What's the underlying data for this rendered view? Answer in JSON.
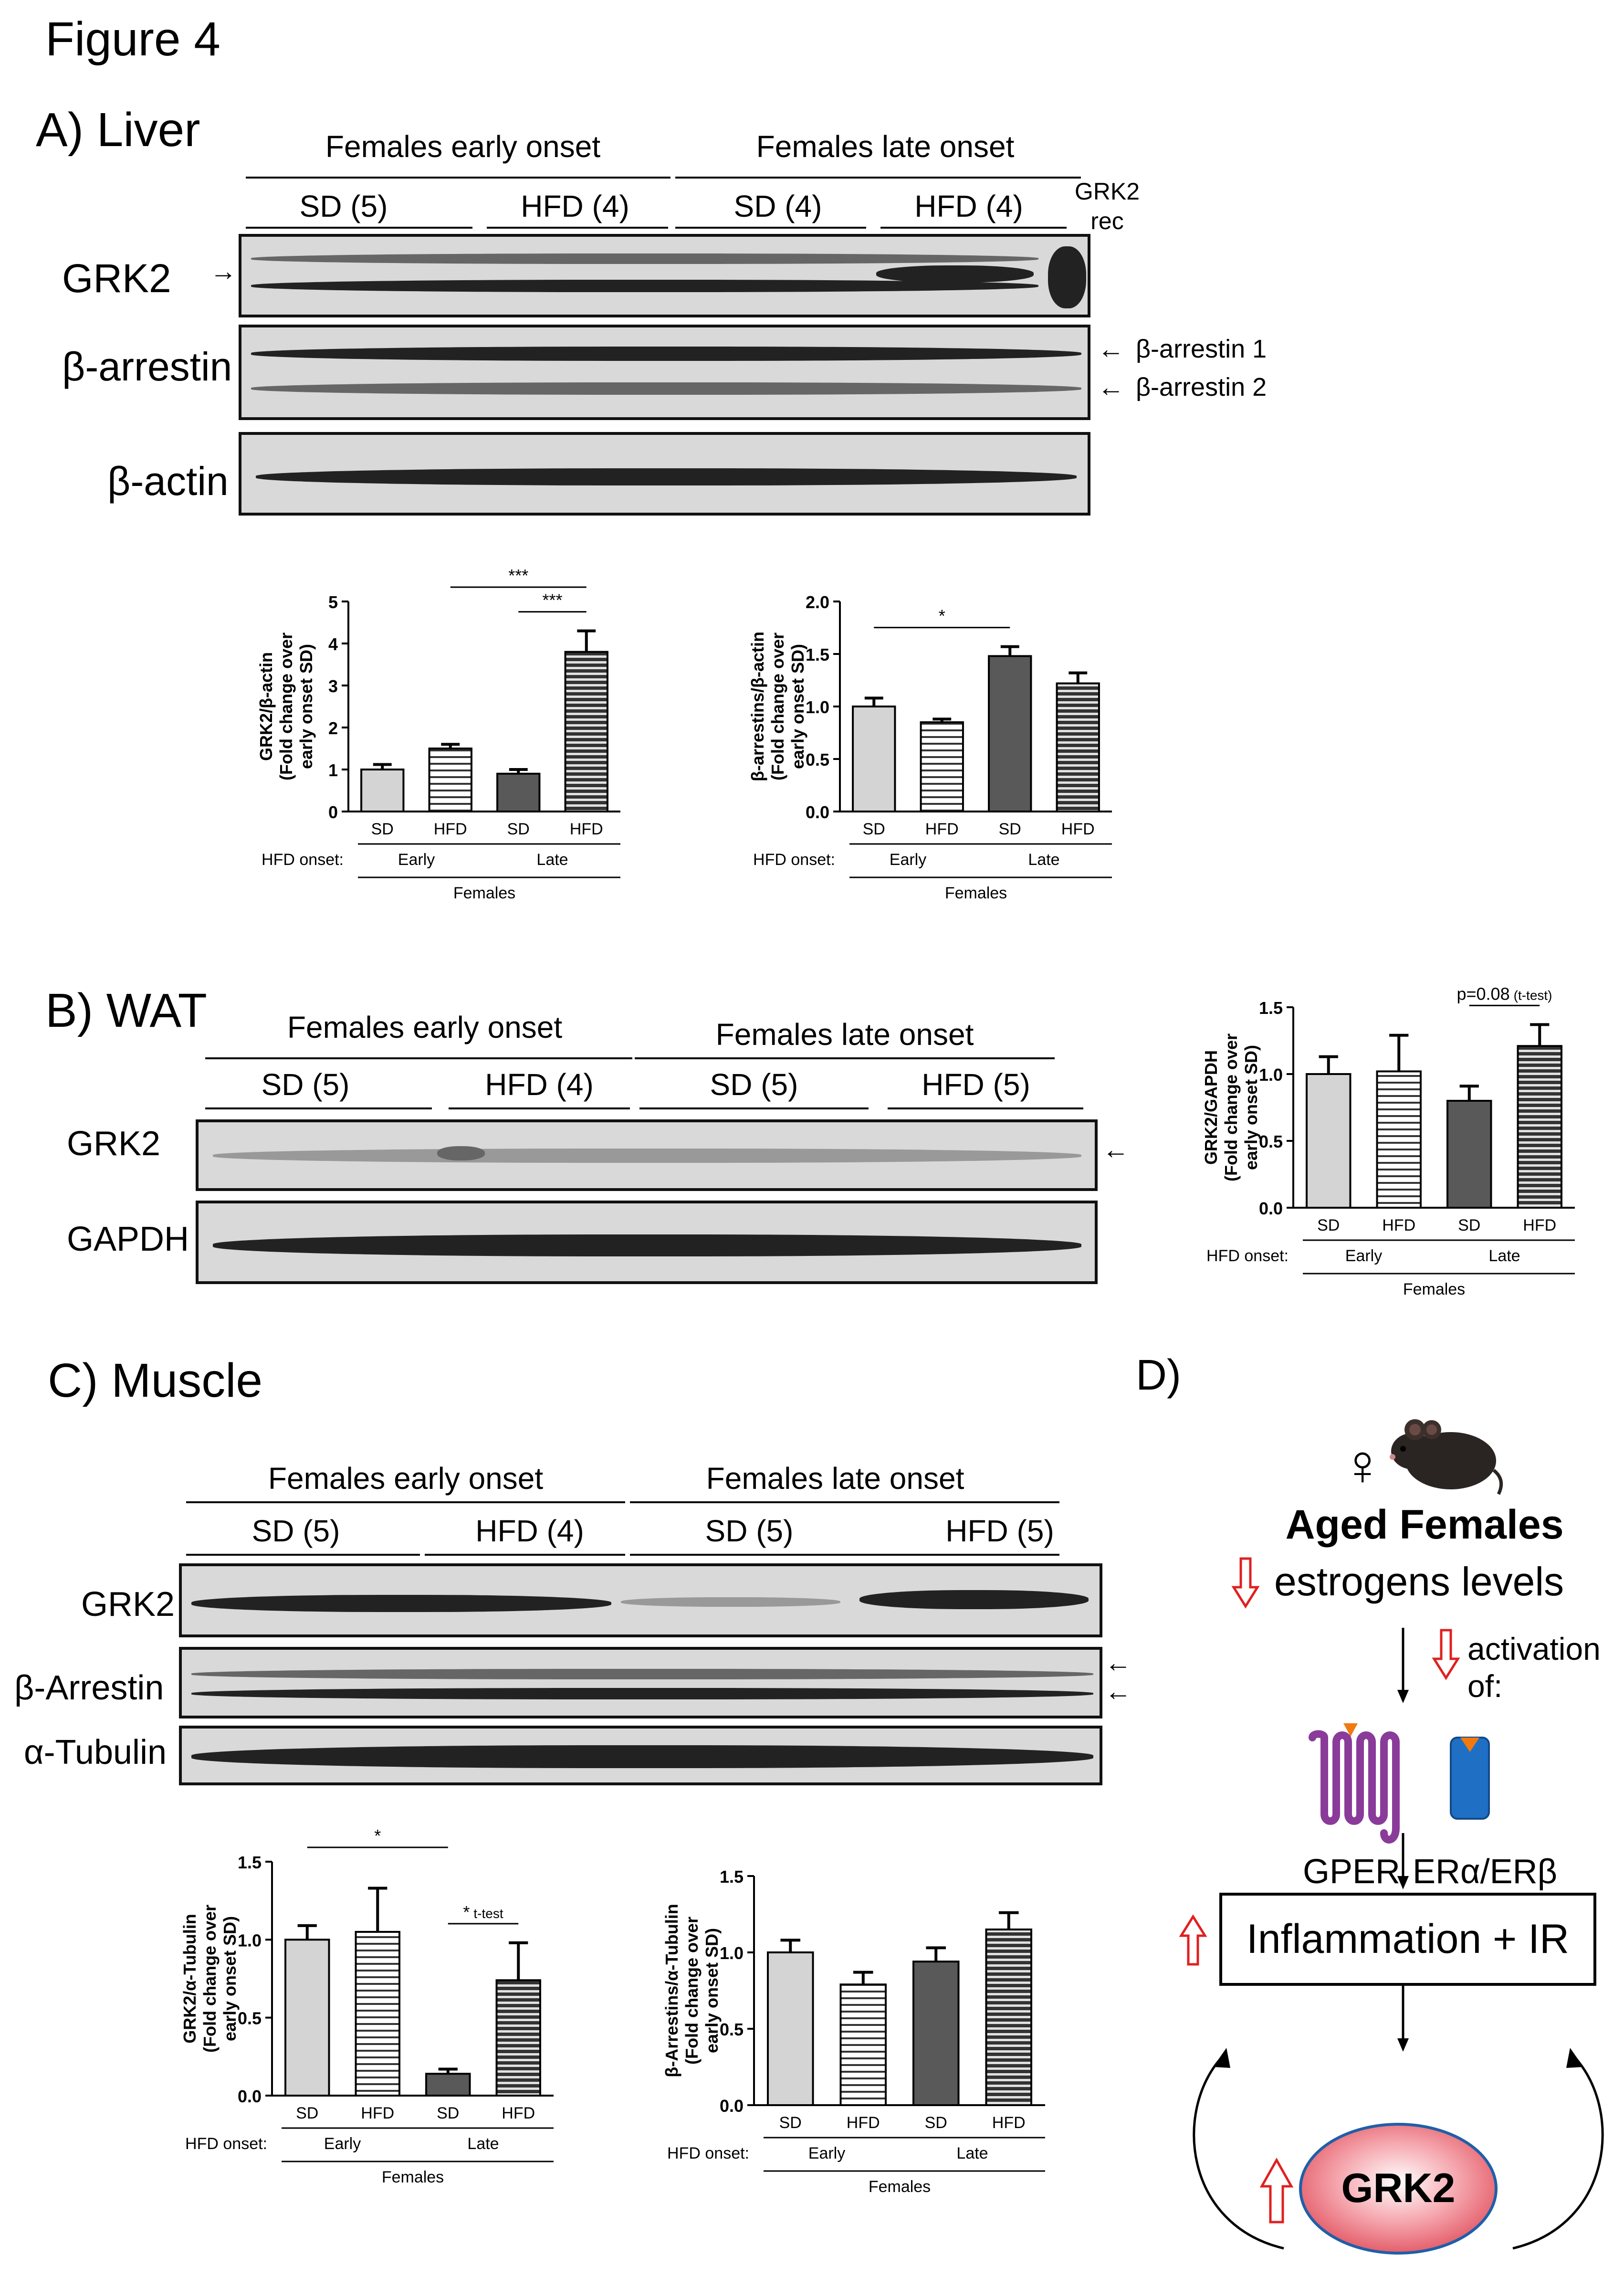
{
  "figure_title": "Figure 4",
  "panel_a": {
    "label": "A) Liver",
    "header_early": "Females early onset",
    "header_late": "Females late onset",
    "groups": [
      "SD (5)",
      "HFD (4)",
      "SD (4)",
      "HFD (4)"
    ],
    "grk2_rec_line1": "GRK2",
    "grk2_rec_line2": "rec",
    "row_labels": [
      "GRK2",
      "β-arrestin",
      "β-actin"
    ],
    "arrow_labels": [
      "β-arrestin 1",
      "β-arrestin 2"
    ]
  },
  "panel_b": {
    "label": "B) WAT",
    "header_early": "Females early onset",
    "header_late": "Females late onset",
    "groups": [
      "SD (5)",
      "HFD (4)",
      "SD (5)",
      "HFD (5)"
    ],
    "row_labels": [
      "GRK2",
      "GAPDH"
    ]
  },
  "panel_c": {
    "label": "C) Muscle",
    "header_early": "Females early onset",
    "header_late": "Females late onset",
    "groups": [
      "SD (5)",
      "HFD (4)",
      "SD (5)",
      "HFD (5)"
    ],
    "row_labels": [
      "GRK2",
      "β-Arrestin",
      "α-Tubulin"
    ]
  },
  "panel_d": {
    "label": "D)",
    "female_symbol": "♀",
    "aged": "Aged Females",
    "estrogens": "estrogens levels",
    "activation_line1": "activation",
    "activation_line2": "of:",
    "gper": "GPER",
    "er": "ERα/ERβ",
    "inflammation": "Inflammation + IR",
    "grk2": "GRK2"
  },
  "chart_data": [
    {
      "id": "liver-grk2",
      "type": "bar",
      "categories": [
        "SD",
        "HFD",
        "SD",
        "HFD"
      ],
      "values": [
        1.0,
        1.5,
        0.9,
        3.8
      ],
      "errors": [
        0.12,
        0.1,
        0.1,
        0.5
      ],
      "ylabel": "GRK2/β-actin (Fold change over early onset SD)",
      "ylim": [
        0,
        5
      ],
      "ticks": [
        "0",
        "1",
        "2",
        "3",
        "4",
        "5"
      ],
      "tick_values": [
        0,
        1,
        2,
        3,
        4,
        5
      ],
      "onset_label": "HFD onset:",
      "onset_groups": [
        "Early",
        "Late"
      ],
      "sex_label": "Females",
      "significance": [
        {
          "from": 1,
          "to": 3,
          "text": "***"
        },
        {
          "from": 2,
          "to": 3,
          "text": "***"
        }
      ]
    },
    {
      "id": "liver-arrestin",
      "type": "bar",
      "categories": [
        "SD",
        "HFD",
        "SD",
        "HFD"
      ],
      "values": [
        1.0,
        0.85,
        1.48,
        1.22
      ],
      "errors": [
        0.08,
        0.03,
        0.09,
        0.1
      ],
      "ylabel": "β-arrestins/β-actin (Fold change over early onset SD)",
      "ylim": [
        0,
        2.0
      ],
      "ticks": [
        "0.0",
        "0.5",
        "1.0",
        "1.5",
        "2.0"
      ],
      "tick_values": [
        0,
        0.5,
        1.0,
        1.5,
        2.0
      ],
      "onset_label": "HFD onset:",
      "onset_groups": [
        "Early",
        "Late"
      ],
      "sex_label": "Females",
      "significance": [
        {
          "from": 0,
          "to": 2,
          "text": "*"
        }
      ]
    },
    {
      "id": "wat-grk2",
      "type": "bar",
      "categories": [
        "SD",
        "HFD",
        "SD",
        "HFD"
      ],
      "values": [
        1.0,
        1.02,
        0.8,
        1.21
      ],
      "errors": [
        0.13,
        0.27,
        0.11,
        0.16
      ],
      "ylabel": "GRK2/GAPDH (Fold change over early onset SD)",
      "ylim": [
        0,
        1.5
      ],
      "ticks": [
        "0.0",
        "0.5",
        "1.0",
        "1.5"
      ],
      "tick_values": [
        0,
        0.5,
        1.0,
        1.5
      ],
      "onset_label": "HFD onset:",
      "onset_groups": [
        "Early",
        "Late"
      ],
      "sex_label": "Females",
      "significance": [
        {
          "from": 2,
          "to": 3,
          "text": "p=0.08",
          "note": "(t-test)"
        }
      ]
    },
    {
      "id": "muscle-grk2",
      "type": "bar",
      "categories": [
        "SD",
        "HFD",
        "SD",
        "HFD"
      ],
      "values": [
        1.0,
        1.05,
        0.14,
        0.74
      ],
      "errors": [
        0.09,
        0.28,
        0.03,
        0.24
      ],
      "ylabel": "GRK2/α-Tubulin (Fold change over early onset SD)",
      "ylim": [
        0,
        1.5
      ],
      "ticks": [
        "0.0",
        "0.5",
        "1.0",
        "1.5"
      ],
      "tick_values": [
        0,
        0.5,
        1.0,
        1.5
      ],
      "onset_label": "HFD onset:",
      "onset_groups": [
        "Early",
        "Late"
      ],
      "sex_label": "Females",
      "significance": [
        {
          "from": 0,
          "to": 2,
          "text": "*"
        },
        {
          "from": 2,
          "to": 3,
          "text": "*",
          "note": "t-test"
        }
      ]
    },
    {
      "id": "muscle-arrestin",
      "type": "bar",
      "categories": [
        "SD",
        "HFD",
        "SD",
        "HFD"
      ],
      "values": [
        1.0,
        0.79,
        0.94,
        1.15
      ],
      "errors": [
        0.08,
        0.08,
        0.09,
        0.11
      ],
      "ylabel": "β-Arrestins/α-Tubulin (Fold change over early onset SD)",
      "ylim": [
        0,
        1.5
      ],
      "ticks": [
        "0.0",
        "0.5",
        "1.0",
        "1.5"
      ],
      "tick_values": [
        0,
        0.5,
        1.0,
        1.5
      ],
      "onset_label": "HFD onset:",
      "onset_groups": [
        "Early",
        "Late"
      ],
      "sex_label": "Females",
      "significance": []
    }
  ]
}
